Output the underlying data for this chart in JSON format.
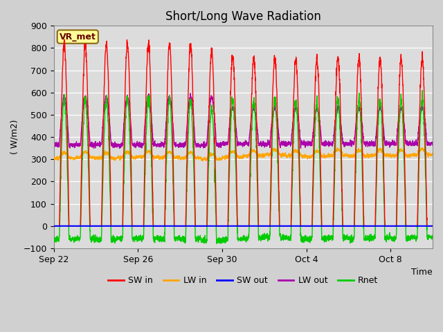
{
  "title": "Short/Long Wave Radiation",
  "xlabel": "Time",
  "ylabel": "( W/m2)",
  "ylim": [
    -100,
    900
  ],
  "yticks": [
    -100,
    0,
    100,
    200,
    300,
    400,
    500,
    600,
    700,
    800,
    900
  ],
  "fig_bg": "#d8d8d8",
  "plot_bg": "#dcdcdc",
  "grid_color": "#ffffff",
  "annotation_text": "VR_met",
  "annotation_box_color": "#ffff99",
  "annotation_border_color": "#8B6914",
  "series": {
    "SW_in": {
      "color": "#ff0000",
      "label": "SW in",
      "lw": 1.0
    },
    "LW_in": {
      "color": "#ffa500",
      "label": "LW in",
      "lw": 1.0
    },
    "SW_out": {
      "color": "#0000ff",
      "label": "SW out",
      "lw": 1.0
    },
    "LW_out": {
      "color": "#aa00aa",
      "label": "LW out",
      "lw": 1.0
    },
    "Rnet": {
      "color": "#00cc00",
      "label": "Rnet",
      "lw": 1.0
    }
  },
  "x_tick_labels": [
    "Sep 22",
    "Sep 26",
    "Sep 30",
    "Oct 4",
    "Oct 8"
  ],
  "x_tick_positions": [
    0,
    4,
    8,
    12,
    16
  ],
  "n_days": 18,
  "title_fontsize": 12,
  "label_fontsize": 9,
  "tick_fontsize": 9,
  "legend_fontsize": 9
}
